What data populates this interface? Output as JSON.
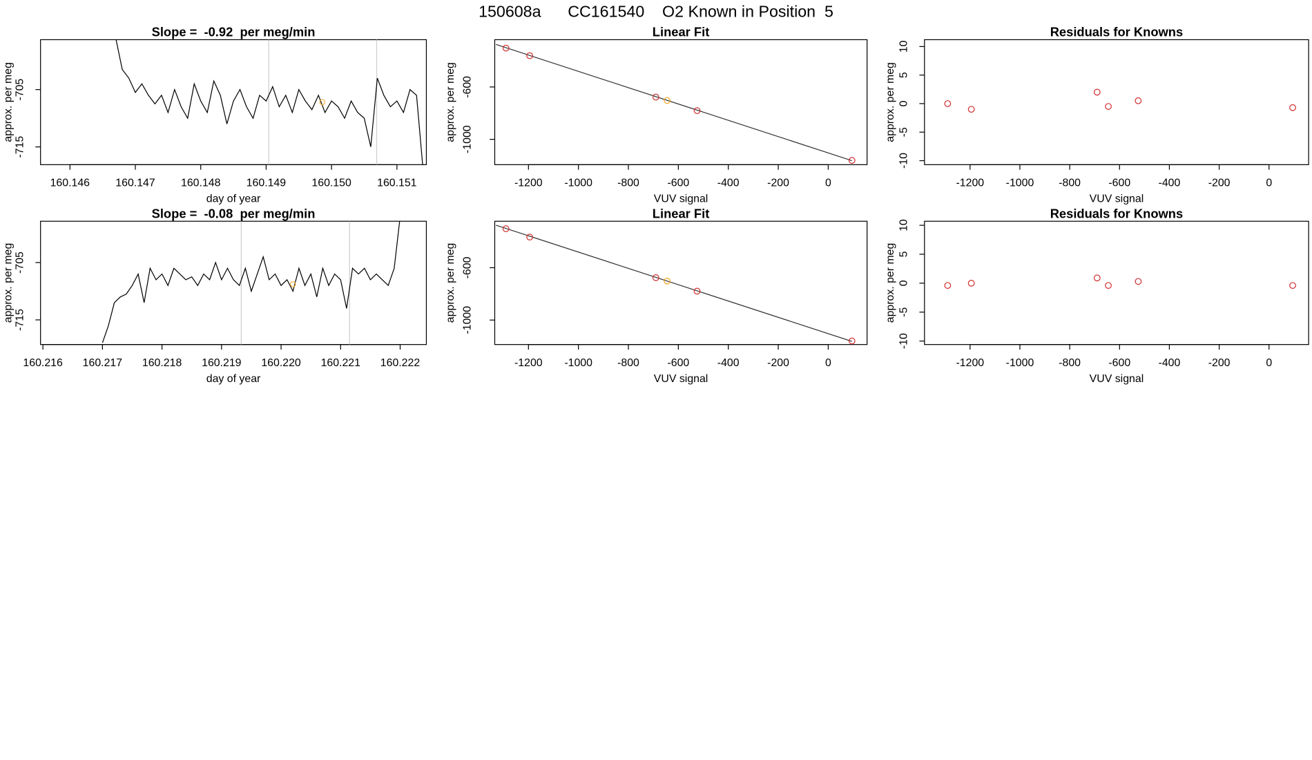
{
  "title": "150608a      CC161540    O2 Known in Position  5",
  "chart_data": [
    {
      "type": "line",
      "title": "Slope =  -0.92  per meg/min",
      "xlabel": "day of year",
      "ylabel": "approx. per meg",
      "x": [
        160.1467,
        160.1468,
        160.1469,
        160.147,
        160.1471,
        160.1472,
        160.1473,
        160.1474,
        160.1475,
        160.1476,
        160.1477,
        160.1478,
        160.1479,
        160.148,
        160.1481,
        160.1482,
        160.1483,
        160.1484,
        160.1485,
        160.1486,
        160.1487,
        160.1488,
        160.1489,
        160.149,
        160.1491,
        160.1492,
        160.1493,
        160.1494,
        160.1495,
        160.1496,
        160.1497,
        160.1498,
        160.1499,
        160.15,
        160.1501,
        160.1502,
        160.1503,
        160.1504,
        160.1505,
        160.1506,
        160.1507,
        160.1508,
        160.1509,
        160.151,
        160.1511,
        160.1512,
        160.1513,
        160.1514
      ],
      "values": [
        -696,
        -701.5,
        -703,
        -705.5,
        -704,
        -706,
        -707.5,
        -706,
        -709,
        -705,
        -708,
        -710,
        -704,
        -707,
        -709,
        -703.5,
        -706,
        -711,
        -707,
        -705,
        -708,
        -710,
        -706,
        -707,
        -704.5,
        -708,
        -706,
        -709,
        -705,
        -707,
        -708.5,
        -706,
        -709,
        -707,
        -708,
        -710,
        -707,
        -709,
        -710,
        -715,
        -703,
        -706,
        -708,
        -707,
        -709,
        -705,
        -706,
        -719
      ],
      "color": "#000000",
      "xlim": [
        160.14555,
        160.15145
      ],
      "ylim": [
        -718.1,
        -696.3
      ],
      "xticks": [
        160.146,
        160.147,
        160.148,
        160.149,
        {
          "value": 160.15,
          "label": "160.150"
        },
        160.151
      ],
      "yticks": [
        -705,
        -715
      ],
      "vlines": [
        160.14904,
        160.15069
      ],
      "vline_color": "#cccccc",
      "highlight": {
        "x": 160.14986,
        "value": -707.2,
        "color": "#f5b041"
      }
    },
    {
      "type": "scatter",
      "title": "Linear Fit",
      "xlabel": "VUV signal",
      "ylabel": "approx. per meg",
      "x": [
        -1290,
        -1195,
        -690,
        -645,
        -525,
        95
      ],
      "values": [
        -303,
        -361,
        -677,
        -703,
        -781,
        -1161
      ],
      "colors": [
        "#d03030",
        "#d03030",
        "#d03030",
        "#f5a623",
        "#d03030",
        "#d03030"
      ],
      "fit_line": {
        "x": [
          -1330,
          95
        ],
        "values": [
          -275,
          -1163
        ],
        "color": "#333333"
      },
      "xlim": [
        -1335,
        155.5
      ],
      "ylim": [
        -1193.5,
        -238.7
      ],
      "xticks": [
        -1200,
        -1000,
        -800,
        -600,
        -400,
        -200,
        0
      ],
      "yticks": [
        -600,
        -1000
      ]
    },
    {
      "type": "scatter",
      "title": "Residuals for Knowns",
      "xlabel": "VUV signal",
      "ylabel": "approx. per meg",
      "x": [
        -1290,
        -1195,
        -690,
        -645,
        -525,
        95
      ],
      "values": [
        0,
        -1,
        2,
        -0.5,
        0.5,
        -0.7
      ],
      "colors": [
        "#d03030",
        "#d03030",
        "#d03030",
        "#d03030",
        "#d03030",
        "#d03030"
      ],
      "xlim": [
        -1383,
        159
      ],
      "ylim": [
        -10.7,
        11.2
      ],
      "xticks": [
        -1200,
        -1000,
        -800,
        -600,
        -400,
        -200,
        0
      ],
      "yticks": [
        -10,
        -5,
        0,
        5,
        10
      ]
    },
    {
      "type": "line",
      "title": "Slope =  -0.08  per meg/min",
      "xlabel": "day of year",
      "ylabel": "approx. per meg",
      "x": [
        160.217,
        160.2171,
        160.2172,
        160.2173,
        160.2174,
        160.2175,
        160.2176,
        160.2177,
        160.2178,
        160.2179,
        160.218,
        160.2181,
        160.2182,
        160.2183,
        160.2184,
        160.2185,
        160.2186,
        160.2187,
        160.2188,
        160.2189,
        160.219,
        160.2191,
        160.2192,
        160.2193,
        160.2194,
        160.2195,
        160.2196,
        160.2197,
        160.2198,
        160.2199,
        160.22,
        160.2201,
        160.2202,
        160.2203,
        160.2204,
        160.2205,
        160.2206,
        160.2207,
        160.2208,
        160.2209,
        160.221,
        160.2211,
        160.2212,
        160.2213,
        160.2214,
        160.2215,
        160.2216,
        160.2217,
        160.2218,
        160.2219,
        160.222
      ],
      "values": [
        -719,
        -716,
        -712,
        -711,
        -710.5,
        -709,
        -707,
        -712,
        -706,
        -708,
        -707,
        -709,
        -706,
        -707,
        -708,
        -707.5,
        -709,
        -707,
        -708,
        -705,
        -708,
        -706,
        -708,
        -709,
        -706,
        -710,
        -707,
        -704,
        -708,
        -707,
        -709,
        -708,
        -710,
        -706,
        -709,
        -707,
        -711,
        -706,
        -709,
        -707,
        -708,
        -713,
        -706,
        -707,
        -706,
        -708,
        -707,
        -708,
        -709,
        -706,
        -697
      ],
      "color": "#000000",
      "xlim": [
        160.21596,
        160.22244
      ],
      "ylim": [
        -719.3,
        -697.8
      ],
      "xticks": [
        160.216,
        160.217,
        160.218,
        160.219,
        {
          "value": 160.22,
          "label": "160.220"
        },
        160.221,
        160.222
      ],
      "yticks": [
        -705,
        -715
      ],
      "vlines": [
        160.21933,
        160.22115
      ],
      "vline_color": "#cccccc",
      "highlight": {
        "x": 160.2202,
        "value": -708.8,
        "color": "#f5b041"
      }
    },
    {
      "type": "scatter",
      "title": "Linear Fit",
      "xlabel": "VUV signal",
      "ylabel": "approx. per meg",
      "x": [
        -1290,
        -1195,
        -690,
        -645,
        -525,
        95
      ],
      "values": [
        -302,
        -366,
        -676,
        -702,
        -779,
        -1160
      ],
      "colors": [
        "#d03030",
        "#d03030",
        "#d03030",
        "#f5a623",
        "#d03030",
        "#d03030"
      ],
      "fit_line": {
        "x": [
          -1330,
          95
        ],
        "values": [
          -275,
          -1163
        ],
        "color": "#333333"
      },
      "xlim": [
        -1335,
        155.5
      ],
      "ylim": [
        -1187,
        -245
      ],
      "xticks": [
        -1200,
        -1000,
        -800,
        -600,
        -400,
        -200,
        0
      ],
      "yticks": [
        -600,
        -1000
      ]
    },
    {
      "type": "scatter",
      "title": "Residuals for Knowns",
      "xlabel": "VUV signal",
      "ylabel": "approx. per meg",
      "x": [
        -1290,
        -1195,
        -690,
        -645,
        -525,
        95
      ],
      "values": [
        -0.4,
        0,
        0.9,
        -0.4,
        0.3,
        -0.4
      ],
      "colors": [
        "#d03030",
        "#d03030",
        "#d03030",
        "#d03030",
        "#d03030",
        "#d03030"
      ],
      "xlim": [
        -1383,
        159
      ],
      "ylim": [
        -10.6,
        10.7
      ],
      "xticks": [
        -1200,
        -1000,
        -800,
        -600,
        -400,
        -200,
        0
      ],
      "yticks": [
        -10,
        -5,
        0,
        5,
        10
      ]
    }
  ]
}
